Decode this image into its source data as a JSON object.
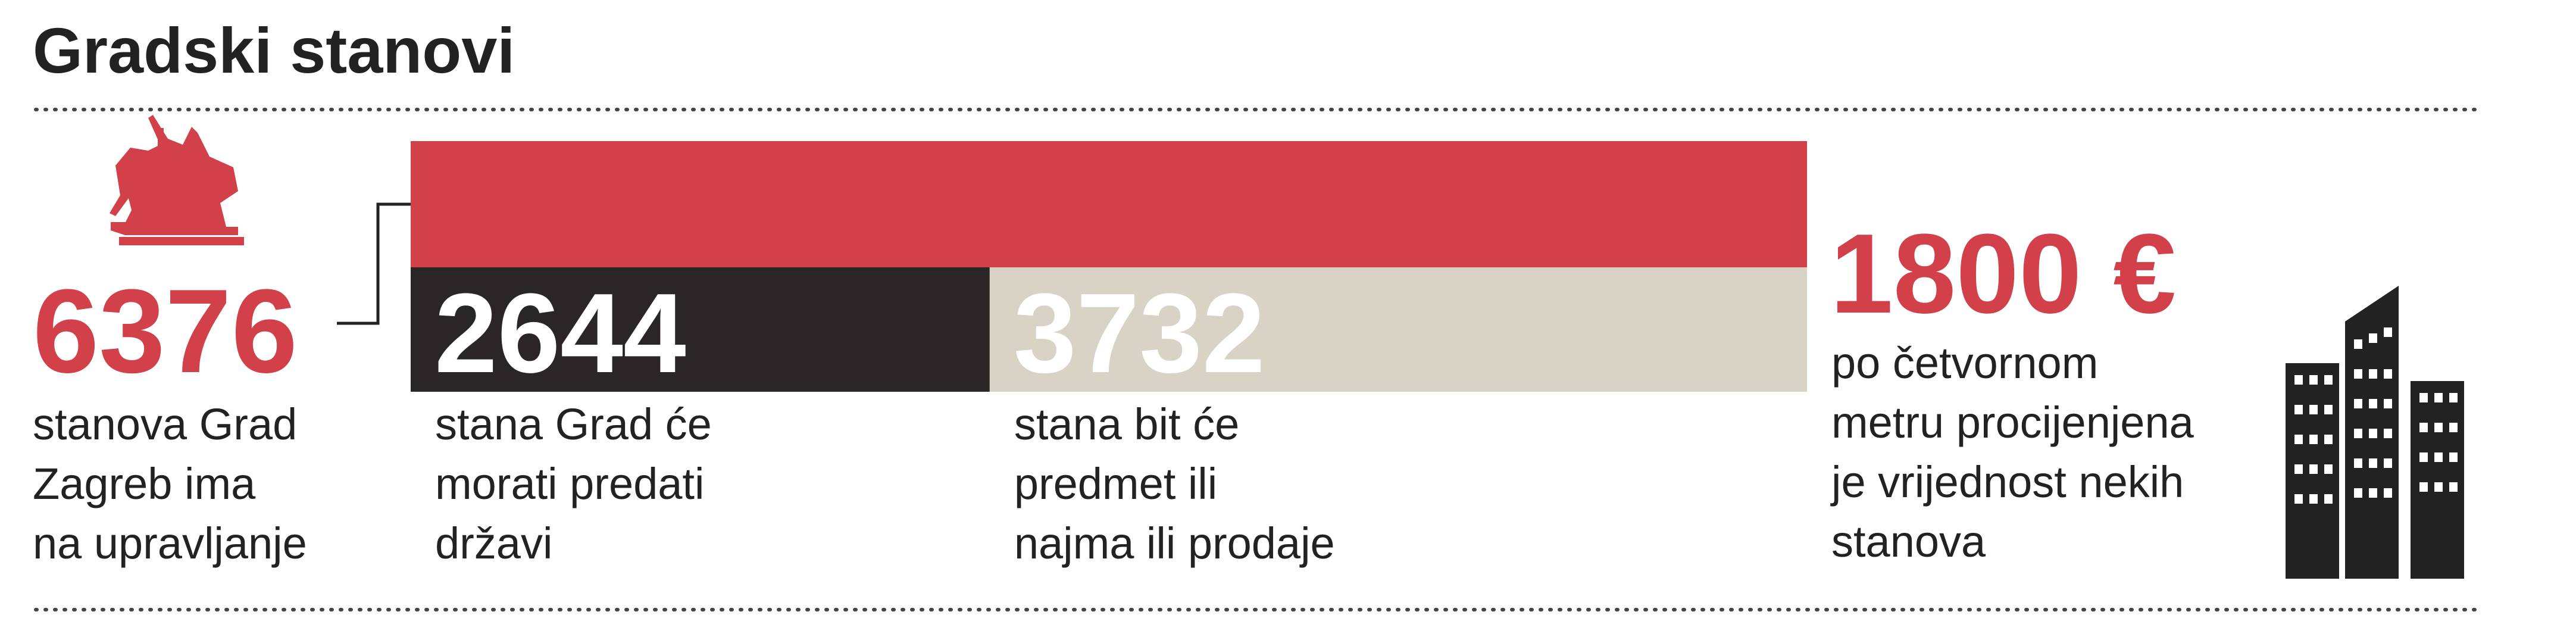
{
  "title": "Gradski stanovi",
  "total": {
    "value": 6376,
    "label_lines": [
      "stanova Grad",
      "Zagreb ima",
      "na upravljanje"
    ]
  },
  "parts": [
    {
      "value": 2644,
      "label_lines": [
        "stana Grad će",
        "morati predati",
        "državi"
      ]
    },
    {
      "value": 3732,
      "label_lines": [
        "stana bit će",
        "predmet ili",
        "najma ili prodaje"
      ]
    }
  ],
  "price": {
    "text": "1800 €",
    "label_lines": [
      "po četvornom",
      "metru procijenjena",
      "je vrijednost nekih",
      "stanova"
    ]
  }
}
